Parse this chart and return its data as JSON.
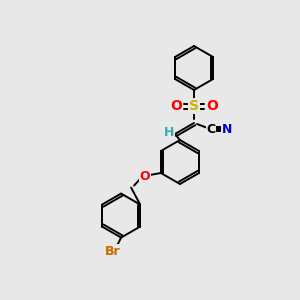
{
  "bg_color": "#e8e8e8",
  "bond_color": "#000000",
  "atom_colors": {
    "S": "#c8b400",
    "O": "#ff0000",
    "N": "#0000cc",
    "Br": "#cc6600",
    "C": "#000000",
    "H": "#3aacac"
  },
  "figsize": [
    3.0,
    3.0
  ],
  "dpi": 100,
  "lw": 1.4,
  "ring_r": 22
}
